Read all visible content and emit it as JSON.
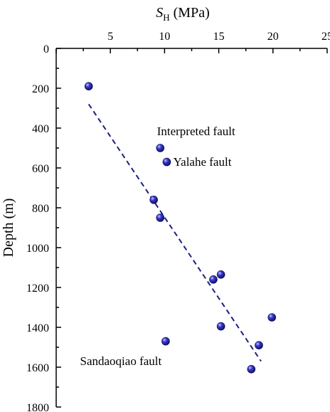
{
  "chart_data": {
    "type": "scatter",
    "xlabel_symbol": "S",
    "xlabel_subscript": "H",
    "xlabel_unit": " (MPa)",
    "ylabel": "Depth (m)",
    "xlim": [
      0,
      25
    ],
    "ylim": [
      0,
      1800
    ],
    "x_axis_position": "top",
    "y_inverted": true,
    "grid": false,
    "x_ticks": [
      0,
      5,
      10,
      15,
      20,
      25
    ],
    "x_tick_labels": [
      "",
      "5",
      "10",
      "15",
      "20",
      "25"
    ],
    "y_ticks": [
      0,
      200,
      400,
      600,
      800,
      1000,
      1200,
      1400,
      1600,
      1800
    ],
    "y_tick_labels": [
      "0",
      "200",
      "400",
      "600",
      "800",
      "1000",
      "1200",
      "1400",
      "1600",
      "1800"
    ],
    "points": [
      {
        "x": 3.0,
        "y": 190
      },
      {
        "x": 9.6,
        "y": 500
      },
      {
        "x": 10.2,
        "y": 570
      },
      {
        "x": 9.0,
        "y": 760
      },
      {
        "x": 9.6,
        "y": 850
      },
      {
        "x": 15.2,
        "y": 1135
      },
      {
        "x": 14.5,
        "y": 1160
      },
      {
        "x": 19.9,
        "y": 1350
      },
      {
        "x": 15.2,
        "y": 1395
      },
      {
        "x": 10.1,
        "y": 1470
      },
      {
        "x": 18.7,
        "y": 1490
      },
      {
        "x": 18.0,
        "y": 1610
      }
    ],
    "trend_line": {
      "style": "dashed",
      "color": "#1a1f80",
      "x": [
        3.0,
        18.9
      ],
      "y": [
        280,
        1570
      ]
    },
    "point_color": "#1f1f9c",
    "annotations": [
      {
        "text": "Interpreted fault",
        "x": 9.3,
        "y": 435
      },
      {
        "text": "Yalahe fault",
        "x": 10.8,
        "y": 590
      },
      {
        "text": "Sandaoqiao fault",
        "x": 2.2,
        "y": 1590
      }
    ]
  }
}
